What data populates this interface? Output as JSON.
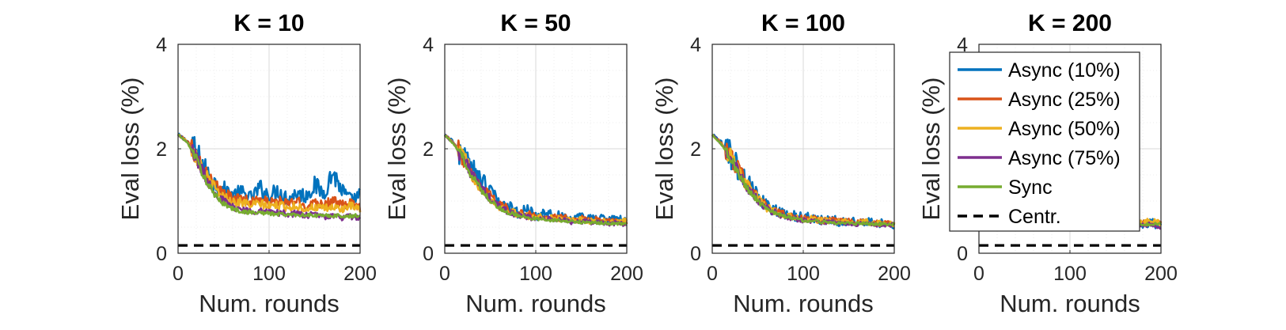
{
  "chart_data": [
    {
      "type": "line",
      "title": "K = 10",
      "xlabel": "Num. rounds",
      "ylabel": "Eval loss (%)",
      "xlim": [
        0,
        200
      ],
      "ylim": [
        0,
        4
      ],
      "xticks": [
        "0",
        "100",
        "200"
      ],
      "yticks": [
        "0",
        "2",
        "4"
      ],
      "grid": true,
      "series": [
        {
          "name": "Async (10%)",
          "x": [
            0,
            10,
            20,
            30,
            40,
            50,
            60,
            70,
            80,
            90,
            100,
            110,
            120,
            130,
            140,
            150,
            160,
            170,
            180,
            190,
            200
          ],
          "values": [
            2.27,
            2.15,
            1.92,
            1.6,
            1.35,
            1.22,
            1.12,
            1.15,
            1.05,
            1.25,
            1.1,
            1.2,
            1.05,
            1.15,
            1.1,
            1.3,
            1.15,
            1.55,
            1.2,
            1.0,
            1.1
          ]
        },
        {
          "name": "Async (25%)",
          "x": [
            0,
            10,
            20,
            30,
            40,
            50,
            60,
            70,
            80,
            90,
            100,
            110,
            120,
            130,
            140,
            150,
            160,
            170,
            180,
            190,
            200
          ],
          "values": [
            2.27,
            2.15,
            1.9,
            1.55,
            1.3,
            1.15,
            1.05,
            1.05,
            0.98,
            1.05,
            0.95,
            1.0,
            0.95,
            1.0,
            0.9,
            0.98,
            0.95,
            1.0,
            0.92,
            0.95,
            0.88
          ]
        },
        {
          "name": "Async (50%)",
          "x": [
            0,
            10,
            20,
            30,
            40,
            50,
            60,
            70,
            80,
            90,
            100,
            110,
            120,
            130,
            140,
            150,
            160,
            170,
            180,
            190,
            200
          ],
          "values": [
            2.27,
            2.14,
            1.88,
            1.5,
            1.25,
            1.08,
            0.98,
            0.98,
            0.92,
            0.95,
            0.9,
            0.92,
            0.88,
            0.9,
            0.85,
            0.88,
            0.85,
            0.88,
            0.85,
            0.9,
            0.83
          ]
        },
        {
          "name": "Async (75%)",
          "x": [
            0,
            10,
            20,
            30,
            40,
            50,
            60,
            70,
            80,
            90,
            100,
            110,
            120,
            130,
            140,
            150,
            160,
            170,
            180,
            190,
            200
          ],
          "values": [
            2.27,
            2.12,
            1.85,
            1.45,
            1.18,
            1.0,
            0.88,
            0.85,
            0.8,
            0.82,
            0.78,
            0.78,
            0.75,
            0.76,
            0.72,
            0.74,
            0.7,
            0.72,
            0.68,
            0.7,
            0.68
          ]
        },
        {
          "name": "Sync",
          "x": [
            0,
            10,
            20,
            30,
            40,
            50,
            60,
            70,
            80,
            90,
            100,
            110,
            120,
            130,
            140,
            150,
            160,
            170,
            180,
            190,
            200
          ],
          "values": [
            2.27,
            2.12,
            1.82,
            1.4,
            1.12,
            0.95,
            0.85,
            0.8,
            0.78,
            0.78,
            0.76,
            0.75,
            0.74,
            0.74,
            0.73,
            0.72,
            0.72,
            0.72,
            0.71,
            0.71,
            0.72
          ]
        },
        {
          "name": "Centr.",
          "x": [
            0,
            200
          ],
          "values": [
            0.15,
            0.15
          ]
        }
      ]
    },
    {
      "type": "line",
      "title": "K = 50",
      "xlabel": "Num. rounds",
      "ylabel": "Eval loss (%)",
      "xlim": [
        0,
        200
      ],
      "ylim": [
        0,
        4
      ],
      "xticks": [
        "0",
        "100",
        "200"
      ],
      "yticks": [
        "0",
        "2",
        "4"
      ],
      "grid": true,
      "series": [
        {
          "name": "Async (10%)",
          "x": [
            0,
            10,
            20,
            30,
            40,
            50,
            60,
            70,
            80,
            90,
            100,
            110,
            120,
            130,
            140,
            150,
            160,
            170,
            180,
            190,
            200
          ],
          "values": [
            2.27,
            2.12,
            1.88,
            1.6,
            1.38,
            1.2,
            0.95,
            0.88,
            0.78,
            0.82,
            0.72,
            0.78,
            0.7,
            0.72,
            0.65,
            0.68,
            0.66,
            0.7,
            0.62,
            0.66,
            0.6
          ]
        },
        {
          "name": "Async (25%)",
          "x": [
            0,
            10,
            20,
            30,
            40,
            50,
            60,
            70,
            80,
            90,
            100,
            110,
            120,
            130,
            140,
            150,
            160,
            170,
            180,
            190,
            200
          ],
          "values": [
            2.27,
            2.1,
            1.86,
            1.55,
            1.3,
            1.1,
            0.92,
            0.85,
            0.76,
            0.75,
            0.7,
            0.72,
            0.68,
            0.68,
            0.64,
            0.66,
            0.63,
            0.64,
            0.6,
            0.62,
            0.58
          ]
        },
        {
          "name": "Async (50%)",
          "x": [
            0,
            10,
            20,
            30,
            40,
            50,
            60,
            70,
            80,
            90,
            100,
            110,
            120,
            130,
            140,
            150,
            160,
            170,
            180,
            190,
            200
          ],
          "values": [
            2.27,
            2.1,
            1.85,
            1.52,
            1.26,
            1.06,
            0.9,
            0.82,
            0.74,
            0.72,
            0.68,
            0.7,
            0.66,
            0.66,
            0.62,
            0.64,
            0.61,
            0.62,
            0.59,
            0.6,
            0.62
          ]
        },
        {
          "name": "Async (75%)",
          "x": [
            0,
            10,
            20,
            30,
            40,
            50,
            60,
            70,
            80,
            90,
            100,
            110,
            120,
            130,
            140,
            150,
            160,
            170,
            180,
            190,
            200
          ],
          "values": [
            2.27,
            2.09,
            1.83,
            1.5,
            1.24,
            1.04,
            0.88,
            0.8,
            0.72,
            0.7,
            0.66,
            0.66,
            0.64,
            0.63,
            0.6,
            0.61,
            0.59,
            0.6,
            0.56,
            0.58,
            0.55
          ]
        },
        {
          "name": "Sync",
          "x": [
            0,
            10,
            20,
            30,
            40,
            50,
            60,
            70,
            80,
            90,
            100,
            110,
            120,
            130,
            140,
            150,
            160,
            170,
            180,
            190,
            200
          ],
          "values": [
            2.27,
            2.08,
            1.82,
            1.48,
            1.22,
            1.02,
            0.86,
            0.78,
            0.72,
            0.69,
            0.66,
            0.65,
            0.63,
            0.62,
            0.6,
            0.6,
            0.58,
            0.58,
            0.57,
            0.57,
            0.56
          ]
        },
        {
          "name": "Centr.",
          "x": [
            0,
            200
          ],
          "values": [
            0.15,
            0.15
          ]
        }
      ]
    },
    {
      "type": "line",
      "title": "K = 100",
      "xlabel": "Num. rounds",
      "ylabel": "Eval loss (%)",
      "xlim": [
        0,
        200
      ],
      "ylim": [
        0,
        4
      ],
      "xticks": [
        "0",
        "100",
        "200"
      ],
      "yticks": [
        "0",
        "2",
        "4"
      ],
      "grid": true,
      "series": [
        {
          "name": "Async (10%)",
          "x": [
            0,
            10,
            20,
            30,
            40,
            50,
            60,
            70,
            80,
            90,
            100,
            110,
            120,
            130,
            140,
            150,
            160,
            170,
            180,
            190,
            200
          ],
          "values": [
            2.27,
            2.12,
            1.88,
            1.58,
            1.32,
            1.1,
            0.9,
            0.82,
            0.74,
            0.72,
            0.68,
            0.7,
            0.64,
            0.66,
            0.6,
            0.62,
            0.6,
            0.62,
            0.56,
            0.58,
            0.5
          ]
        },
        {
          "name": "Async (25%)",
          "x": [
            0,
            10,
            20,
            30,
            40,
            50,
            60,
            70,
            80,
            90,
            100,
            110,
            120,
            130,
            140,
            150,
            160,
            170,
            180,
            190,
            200
          ],
          "values": [
            2.27,
            2.11,
            1.87,
            1.55,
            1.28,
            1.06,
            0.88,
            0.8,
            0.73,
            0.7,
            0.66,
            0.67,
            0.63,
            0.63,
            0.6,
            0.61,
            0.59,
            0.6,
            0.57,
            0.58,
            0.56
          ]
        },
        {
          "name": "Async (50%)",
          "x": [
            0,
            10,
            20,
            30,
            40,
            50,
            60,
            70,
            80,
            90,
            100,
            110,
            120,
            130,
            140,
            150,
            160,
            170,
            180,
            190,
            200
          ],
          "values": [
            2.27,
            2.1,
            1.86,
            1.53,
            1.26,
            1.04,
            0.87,
            0.79,
            0.72,
            0.69,
            0.65,
            0.66,
            0.62,
            0.62,
            0.6,
            0.6,
            0.58,
            0.6,
            0.57,
            0.58,
            0.56
          ]
        },
        {
          "name": "Async (75%)",
          "x": [
            0,
            10,
            20,
            30,
            40,
            50,
            60,
            70,
            80,
            90,
            100,
            110,
            120,
            130,
            140,
            150,
            160,
            170,
            180,
            190,
            200
          ],
          "values": [
            2.27,
            2.09,
            1.84,
            1.5,
            1.23,
            1.02,
            0.85,
            0.77,
            0.7,
            0.67,
            0.63,
            0.63,
            0.6,
            0.6,
            0.57,
            0.58,
            0.56,
            0.57,
            0.54,
            0.55,
            0.54
          ]
        },
        {
          "name": "Sync",
          "x": [
            0,
            10,
            20,
            30,
            40,
            50,
            60,
            70,
            80,
            90,
            100,
            110,
            120,
            130,
            140,
            150,
            160,
            170,
            180,
            190,
            200
          ],
          "values": [
            2.27,
            2.08,
            1.83,
            1.48,
            1.2,
            1.0,
            0.84,
            0.76,
            0.7,
            0.67,
            0.63,
            0.62,
            0.6,
            0.59,
            0.58,
            0.58,
            0.57,
            0.57,
            0.56,
            0.56,
            0.56
          ]
        },
        {
          "name": "Centr.",
          "x": [
            0,
            200
          ],
          "values": [
            0.15,
            0.15
          ]
        }
      ]
    },
    {
      "type": "line",
      "title": "K = 200",
      "xlabel": "Num. rounds",
      "ylabel": "Eval loss (%)",
      "xlim": [
        0,
        200
      ],
      "ylim": [
        0,
        4
      ],
      "xticks": [
        "0",
        "100",
        "200"
      ],
      "yticks": [
        "0",
        "2",
        "4"
      ],
      "grid": true,
      "series": [
        {
          "name": "Async (10%)",
          "x": [
            0,
            10,
            20,
            30,
            40,
            50,
            60,
            70,
            80,
            90,
            100,
            110,
            120,
            130,
            140,
            150,
            160,
            170,
            180,
            190,
            200
          ],
          "values": [
            2.27,
            2.12,
            1.88,
            1.58,
            1.32,
            1.1,
            0.9,
            0.82,
            0.74,
            0.72,
            0.68,
            0.7,
            0.64,
            0.66,
            0.6,
            0.62,
            0.6,
            0.62,
            0.56,
            0.58,
            0.52
          ]
        },
        {
          "name": "Async (25%)",
          "x": [
            0,
            10,
            20,
            30,
            40,
            50,
            60,
            70,
            80,
            90,
            100,
            110,
            120,
            130,
            140,
            150,
            160,
            170,
            180,
            190,
            200
          ],
          "values": [
            2.27,
            2.11,
            1.87,
            1.55,
            1.28,
            1.06,
            0.88,
            0.8,
            0.73,
            0.7,
            0.66,
            0.67,
            0.63,
            0.63,
            0.6,
            0.61,
            0.59,
            0.6,
            0.57,
            0.58,
            0.56
          ]
        },
        {
          "name": "Async (50%)",
          "x": [
            0,
            10,
            20,
            30,
            40,
            50,
            60,
            70,
            80,
            90,
            100,
            110,
            120,
            130,
            140,
            150,
            160,
            170,
            180,
            190,
            200
          ],
          "values": [
            2.27,
            2.1,
            1.86,
            1.53,
            1.26,
            1.04,
            0.87,
            0.79,
            0.72,
            0.69,
            0.65,
            0.66,
            0.62,
            0.62,
            0.6,
            0.6,
            0.58,
            0.6,
            0.57,
            0.65,
            0.56
          ]
        },
        {
          "name": "Async (75%)",
          "x": [
            0,
            10,
            20,
            30,
            40,
            50,
            60,
            70,
            80,
            90,
            100,
            110,
            120,
            130,
            140,
            150,
            160,
            170,
            180,
            190,
            200
          ],
          "values": [
            2.27,
            2.09,
            1.84,
            1.5,
            1.23,
            1.02,
            0.85,
            0.77,
            0.7,
            0.67,
            0.63,
            0.63,
            0.6,
            0.6,
            0.57,
            0.58,
            0.56,
            0.57,
            0.54,
            0.55,
            0.5
          ]
        },
        {
          "name": "Sync",
          "x": [
            0,
            10,
            20,
            30,
            40,
            50,
            60,
            70,
            80,
            90,
            100,
            110,
            120,
            130,
            140,
            150,
            160,
            170,
            180,
            190,
            200
          ],
          "values": [
            2.27,
            2.08,
            1.83,
            1.48,
            1.2,
            1.0,
            0.84,
            0.76,
            0.7,
            0.67,
            0.63,
            0.62,
            0.6,
            0.59,
            0.58,
            0.58,
            0.57,
            0.57,
            0.56,
            0.56,
            0.56
          ]
        },
        {
          "name": "Centr.",
          "x": [
            0,
            200
          ],
          "values": [
            0.15,
            0.15
          ]
        }
      ]
    }
  ],
  "colors": {
    "Async (10%)": "#0072BD",
    "Async (25%)": "#D95319",
    "Async (50%)": "#EDB120",
    "Async (75%)": "#7E2F8E",
    "Sync": "#77AC30",
    "Centr.": "#000000"
  },
  "legend": {
    "placement": "over last panel, top-left",
    "entries": [
      {
        "label": "Async (10%)",
        "style": "solid"
      },
      {
        "label": "Async (25%)",
        "style": "solid"
      },
      {
        "label": "Async (50%)",
        "style": "solid"
      },
      {
        "label": "Async (75%)",
        "style": "solid"
      },
      {
        "label": "Sync",
        "style": "solid"
      },
      {
        "label": "Centr.",
        "style": "dashed"
      }
    ]
  }
}
